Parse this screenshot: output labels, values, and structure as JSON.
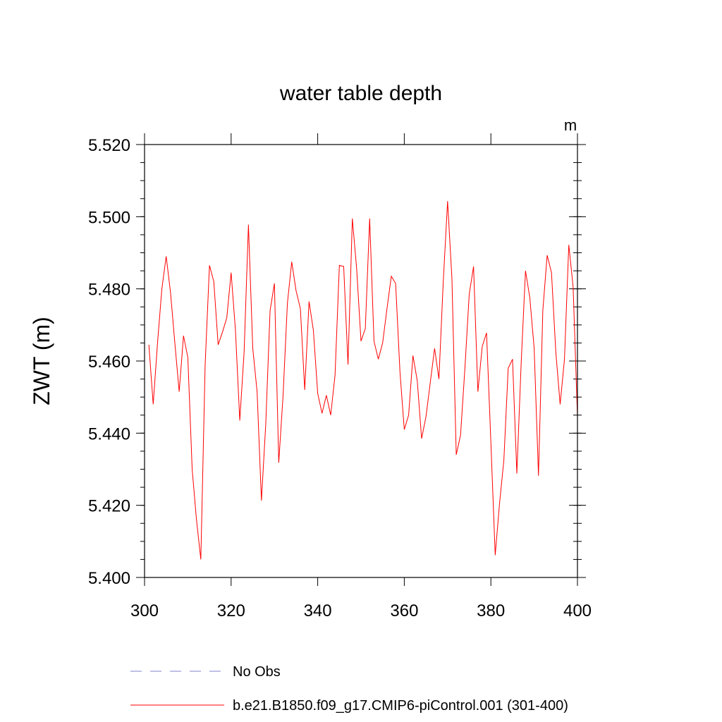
{
  "chart_data": {
    "type": "line",
    "title": "water table depth",
    "units_label": "m",
    "ylabel": "ZWT  (m)",
    "xlabel": "",
    "xlim": [
      300,
      400
    ],
    "ylim": [
      5.4,
      5.52
    ],
    "x_ticks": [
      300,
      320,
      340,
      360,
      380,
      400
    ],
    "x_tick_labels": [
      "300",
      "320",
      "340",
      "360",
      "380",
      "400"
    ],
    "y_ticks": [
      5.4,
      5.42,
      5.44,
      5.46,
      5.48,
      5.5,
      5.52
    ],
    "y_tick_labels": [
      "5.400",
      "5.420",
      "5.440",
      "5.460",
      "5.480",
      "5.500",
      "5.520"
    ],
    "grid": false,
    "legend_position": "bottom",
    "series": [
      {
        "name": "b.e21.B1850.f09_g17.CMIP6-piControl.001 (301-400)",
        "color": "#ff0000",
        "style": "solid",
        "x": [
          301,
          302,
          303,
          304,
          305,
          306,
          307,
          308,
          309,
          310,
          311,
          312,
          313,
          314,
          315,
          316,
          317,
          318,
          319,
          320,
          321,
          322,
          323,
          324,
          325,
          326,
          327,
          328,
          329,
          330,
          331,
          332,
          333,
          334,
          335,
          336,
          337,
          338,
          339,
          340,
          341,
          342,
          343,
          344,
          345,
          346,
          347,
          348,
          349,
          350,
          351,
          352,
          353,
          354,
          355,
          356,
          357,
          358,
          359,
          360,
          361,
          362,
          363,
          364,
          365,
          366,
          367,
          368,
          369,
          370,
          371,
          372,
          373,
          374,
          375,
          376,
          377,
          378,
          379,
          380,
          381,
          382,
          383,
          384,
          385,
          386,
          387,
          388,
          389,
          390,
          391,
          392,
          393,
          394,
          395,
          396,
          397,
          398,
          399,
          400
        ],
        "values": [
          5.4645,
          5.448,
          5.465,
          5.48,
          5.489,
          5.479,
          5.465,
          5.4515,
          5.467,
          5.461,
          5.43,
          5.416,
          5.405,
          5.459,
          5.4865,
          5.482,
          5.4645,
          5.468,
          5.472,
          5.4845,
          5.4685,
          5.4435,
          5.4625,
          5.4978,
          5.4635,
          5.4515,
          5.4213,
          5.4425,
          5.474,
          5.4815,
          5.4318,
          5.4505,
          5.476,
          5.4875,
          5.4795,
          5.4745,
          5.452,
          5.4765,
          5.4685,
          5.451,
          5.4455,
          5.4505,
          5.445,
          5.456,
          5.4865,
          5.4862,
          5.459,
          5.4995,
          5.4855,
          5.4655,
          5.469,
          5.4995,
          5.4655,
          5.4605,
          5.465,
          5.4745,
          5.4835,
          5.4815,
          5.457,
          5.441,
          5.445,
          5.4615,
          5.4545,
          5.4385,
          5.4445,
          5.454,
          5.4635,
          5.455,
          5.482,
          5.5043,
          5.483,
          5.434,
          5.4395,
          5.458,
          5.4785,
          5.4862,
          5.4515,
          5.464,
          5.4678,
          5.4375,
          5.4062,
          5.4205,
          5.4325,
          5.458,
          5.4605,
          5.4288,
          5.4595,
          5.485,
          5.4775,
          5.4635,
          5.4282,
          5.474,
          5.4893,
          5.4845,
          5.4625,
          5.448,
          5.4605,
          5.4922,
          5.4805,
          5.4445
        ]
      },
      {
        "name": "No Obs",
        "color": "#8080d0",
        "style": "dashed",
        "x": [],
        "values": []
      }
    ]
  }
}
